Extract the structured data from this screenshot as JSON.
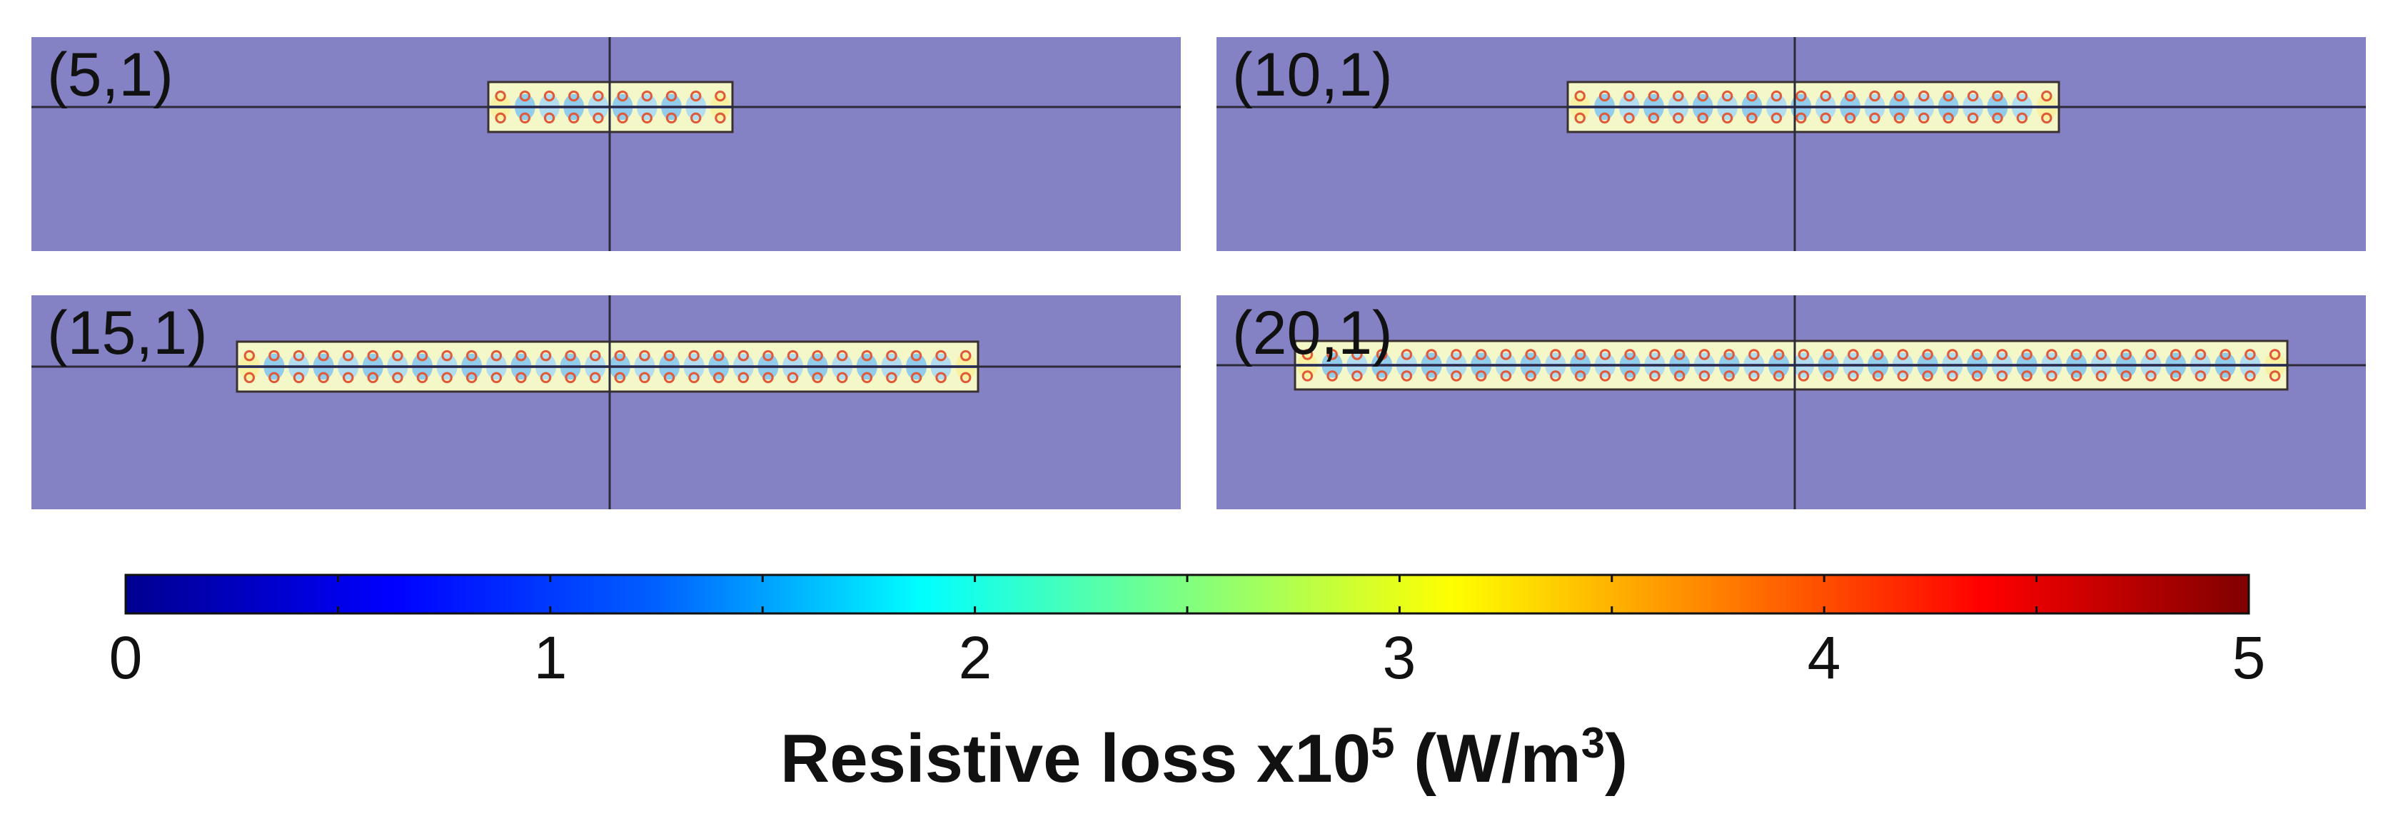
{
  "panels": [
    {
      "label": "(5,1)",
      "mode": [
        5,
        1
      ]
    },
    {
      "label": "(10,1)",
      "mode": [
        10,
        1
      ]
    },
    {
      "label": "(15,1)",
      "mode": [
        15,
        1
      ]
    },
    {
      "label": "(20,1)",
      "mode": [
        20,
        1
      ]
    }
  ],
  "colorbar": {
    "min": 0,
    "max": 5,
    "ticks": [
      "0",
      "1",
      "2",
      "3",
      "4",
      "5"
    ],
    "title_main": "Resistive loss x10",
    "title_exp": "5",
    "title_unit_open": " (W/m",
    "title_unit_exp": "3",
    "title_unit_close": ")",
    "colormap": "jet"
  },
  "colors": {
    "background_domain": "#8482c4",
    "axis_line": "#2b2b3a",
    "strip_outline": "#3a3030"
  }
}
